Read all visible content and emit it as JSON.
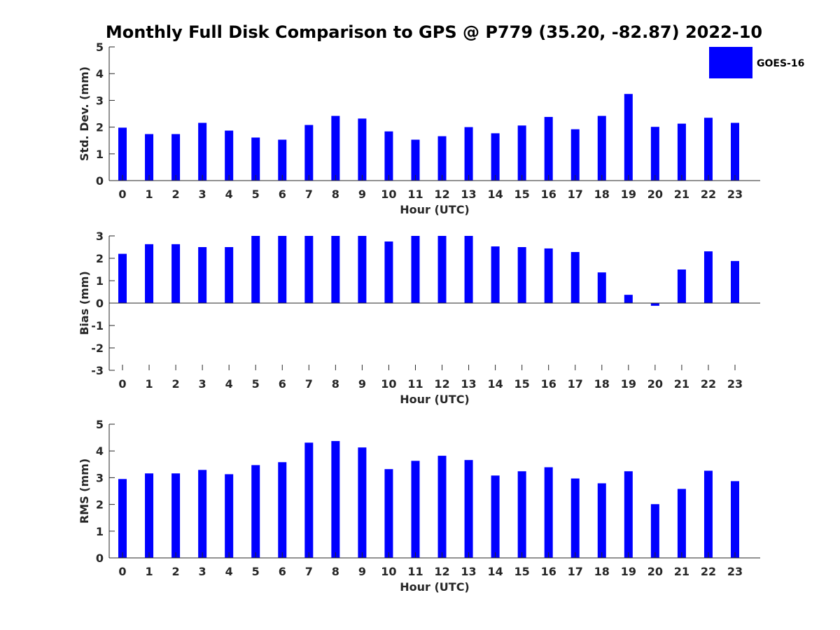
{
  "chart_data": {
    "title": "Monthly Full Disk Comparison to GPS @ P779 (35.20, -82.87) 2022-10",
    "legend": {
      "label": "GOES-16",
      "color": "#0000ff",
      "placement": "top-right"
    },
    "bar_color": "#0000ff",
    "panels": [
      {
        "type": "bar",
        "name": "std-dev",
        "ylabel": "Std. Dev. (mm)",
        "xlabel": "Hour (UTC)",
        "ylim": [
          0,
          5
        ],
        "yticks": [
          0,
          1,
          2,
          3,
          4,
          5
        ],
        "categories": [
          "0",
          "1",
          "2",
          "3",
          "4",
          "5",
          "6",
          "7",
          "8",
          "9",
          "10",
          "11",
          "12",
          "13",
          "14",
          "15",
          "16",
          "17",
          "18",
          "19",
          "20",
          "21",
          "22",
          "23"
        ],
        "values": [
          1.98,
          1.74,
          1.74,
          2.16,
          1.87,
          1.61,
          1.53,
          2.08,
          2.42,
          2.32,
          1.84,
          1.53,
          1.66,
          2.0,
          1.77,
          2.06,
          2.38,
          1.92,
          2.42,
          3.24,
          2.01,
          2.13,
          2.35,
          2.16
        ]
      },
      {
        "type": "bar",
        "name": "bias",
        "ylabel": "Bias (mm)",
        "xlabel": "Hour (UTC)",
        "ylim": [
          -3,
          3
        ],
        "yticks": [
          -3,
          -2,
          -1,
          0,
          1,
          2,
          3
        ],
        "categories": [
          "0",
          "1",
          "2",
          "3",
          "4",
          "5",
          "6",
          "7",
          "8",
          "9",
          "10",
          "11",
          "12",
          "13",
          "14",
          "15",
          "16",
          "17",
          "18",
          "19",
          "20",
          "21",
          "22",
          "23"
        ],
        "values": [
          2.2,
          2.63,
          2.63,
          2.5,
          2.5,
          3.0,
          3.0,
          3.0,
          3.0,
          3.0,
          2.75,
          3.0,
          3.0,
          3.0,
          2.53,
          2.5,
          2.44,
          2.28,
          1.37,
          0.37,
          -0.12,
          1.5,
          2.31,
          1.88
        ]
      },
      {
        "type": "bar",
        "name": "rms",
        "ylabel": "RMS (mm)",
        "xlabel": "Hour (UTC)",
        "ylim": [
          0,
          5
        ],
        "yticks": [
          0,
          1,
          2,
          3,
          4,
          5
        ],
        "categories": [
          "0",
          "1",
          "2",
          "3",
          "4",
          "5",
          "6",
          "7",
          "8",
          "9",
          "10",
          "11",
          "12",
          "13",
          "14",
          "15",
          "16",
          "17",
          "18",
          "19",
          "20",
          "21",
          "22",
          "23"
        ],
        "values": [
          2.95,
          3.16,
          3.16,
          3.29,
          3.13,
          3.47,
          3.58,
          4.31,
          4.37,
          4.13,
          3.32,
          3.63,
          3.82,
          3.66,
          3.08,
          3.24,
          3.39,
          2.97,
          2.79,
          3.24,
          2.01,
          2.58,
          3.26,
          2.87
        ]
      }
    ]
  }
}
